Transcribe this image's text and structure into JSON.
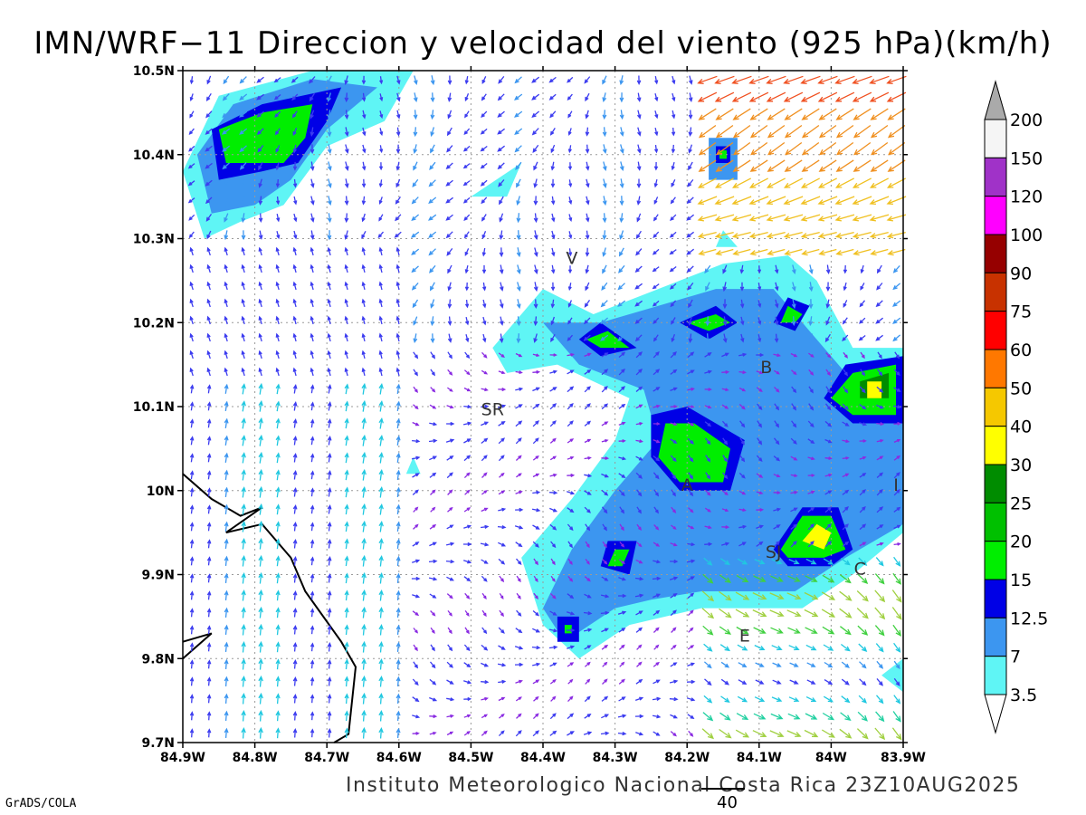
{
  "title": "IMN/WRF−11 Direccion y velocidad del viento (925 hPa)(km/h)",
  "footer": "Instituto Meteorologico Nacional Costa Rica  23Z10AUG2025",
  "credit": "GrADS/COLA",
  "reference_vector": "40",
  "axes": {
    "lon_labels": [
      "84.9W",
      "84.8W",
      "84.7W",
      "84.6W",
      "84.5W",
      "84.4W",
      "84.3W",
      "84.2W",
      "84.1W",
      "84W",
      "83.9W"
    ],
    "lat_labels": [
      "10.5N",
      "10.4N",
      "10.3N",
      "10.2N",
      "10.1N",
      "10N",
      "9.9N",
      "9.8N",
      "9.7N"
    ],
    "lon_range": [
      -84.9,
      -83.9
    ],
    "lat_range": [
      9.7,
      10.5
    ]
  },
  "colorbar": {
    "levels": [
      "3.5",
      "7",
      "12.5",
      "15",
      "20",
      "25",
      "30",
      "40",
      "50",
      "60",
      "75",
      "90",
      "100",
      "120",
      "150",
      "200"
    ],
    "colors": [
      "#5ff5f5",
      "#3c96f0",
      "#0000e6",
      "#00ee00",
      "#00c000",
      "#008c00",
      "#ffff00",
      "#f5c800",
      "#ff7800",
      "#ff0000",
      "#c83200",
      "#960000",
      "#ff00ff",
      "#a032c8",
      "#f5f5f5",
      "#aaaaaa"
    ]
  },
  "places": [
    {
      "label": "V",
      "lon": -84.36,
      "lat": 10.27
    },
    {
      "label": "SR",
      "lon": -84.47,
      "lat": 10.09
    },
    {
      "label": "B",
      "lon": -84.09,
      "lat": 10.14
    },
    {
      "label": "A",
      "lon": -84.2,
      "lat": 10.0
    },
    {
      "label": "SJ",
      "lon": -84.08,
      "lat": 9.92
    },
    {
      "label": "C",
      "lon": -83.96,
      "lat": 9.9
    },
    {
      "label": "E",
      "lon": -84.12,
      "lat": 9.82
    },
    {
      "label": "I",
      "lon": -83.91,
      "lat": 10.0
    }
  ],
  "speed_areas": [
    {
      "level": 0,
      "pts": [
        [
          -84.87,
          10.3
        ],
        [
          -84.9,
          10.38
        ],
        [
          -84.85,
          10.47
        ],
        [
          -84.72,
          10.5
        ],
        [
          -84.58,
          10.5
        ],
        [
          -84.62,
          10.44
        ],
        [
          -84.7,
          10.41
        ],
        [
          -84.76,
          10.34
        ],
        [
          -84.82,
          10.32
        ]
      ]
    },
    {
      "level": 1,
      "pts": [
        [
          -84.86,
          10.33
        ],
        [
          -84.88,
          10.4
        ],
        [
          -84.83,
          10.46
        ],
        [
          -84.72,
          10.49
        ],
        [
          -84.63,
          10.48
        ],
        [
          -84.7,
          10.43
        ],
        [
          -84.75,
          10.37
        ],
        [
          -84.8,
          10.34
        ]
      ]
    },
    {
      "level": 2,
      "pts": [
        [
          -84.85,
          10.37
        ],
        [
          -84.86,
          10.43
        ],
        [
          -84.79,
          10.46
        ],
        [
          -84.68,
          10.48
        ],
        [
          -84.7,
          10.44
        ],
        [
          -84.74,
          10.39
        ],
        [
          -84.79,
          10.38
        ]
      ]
    },
    {
      "level": 3,
      "pts": [
        [
          -84.84,
          10.39
        ],
        [
          -84.85,
          10.43
        ],
        [
          -84.79,
          10.45
        ],
        [
          -84.72,
          10.46
        ],
        [
          -84.73,
          10.42
        ],
        [
          -84.76,
          10.39
        ]
      ]
    },
    {
      "level": 0,
      "pts": [
        [
          -84.47,
          10.17
        ],
        [
          -84.4,
          10.24
        ],
        [
          -84.33,
          10.21
        ],
        [
          -84.24,
          10.24
        ],
        [
          -84.15,
          10.27
        ],
        [
          -84.06,
          10.28
        ],
        [
          -84.02,
          10.25
        ],
        [
          -83.97,
          10.17
        ],
        [
          -83.9,
          10.17
        ],
        [
          -83.9,
          9.95
        ],
        [
          -83.97,
          9.9
        ],
        [
          -84.04,
          9.86
        ],
        [
          -84.18,
          9.86
        ],
        [
          -84.28,
          9.84
        ],
        [
          -84.35,
          9.8
        ],
        [
          -84.4,
          9.84
        ],
        [
          -84.43,
          9.92
        ],
        [
          -84.36,
          9.99
        ],
        [
          -84.3,
          10.06
        ],
        [
          -84.28,
          10.11
        ],
        [
          -84.38,
          10.15
        ],
        [
          -84.45,
          10.14
        ]
      ]
    },
    {
      "level": 1,
      "pts": [
        [
          -84.4,
          10.2
        ],
        [
          -84.32,
          10.2
        ],
        [
          -84.24,
          10.22
        ],
        [
          -84.16,
          10.24
        ],
        [
          -84.08,
          10.24
        ],
        [
          -84.04,
          10.2
        ],
        [
          -83.98,
          10.14
        ],
        [
          -83.9,
          10.14
        ],
        [
          -83.9,
          9.96
        ],
        [
          -83.98,
          9.92
        ],
        [
          -84.05,
          9.88
        ],
        [
          -84.18,
          9.88
        ],
        [
          -84.25,
          9.87
        ],
        [
          -84.3,
          9.86
        ],
        [
          -84.37,
          9.82
        ],
        [
          -84.4,
          9.86
        ],
        [
          -84.36,
          9.93
        ],
        [
          -84.3,
          10.0
        ],
        [
          -84.24,
          10.06
        ],
        [
          -84.26,
          10.12
        ],
        [
          -84.35,
          10.15
        ]
      ]
    },
    {
      "level": 2,
      "pts": [
        [
          -84.25,
          10.09
        ],
        [
          -84.2,
          10.1
        ],
        [
          -84.12,
          10.06
        ],
        [
          -84.14,
          10.0
        ],
        [
          -84.21,
          10.0
        ],
        [
          -84.25,
          10.04
        ]
      ]
    },
    {
      "level": 3,
      "pts": [
        [
          -84.23,
          10.08
        ],
        [
          -84.19,
          10.08
        ],
        [
          -84.14,
          10.05
        ],
        [
          -84.15,
          10.01
        ],
        [
          -84.21,
          10.01
        ],
        [
          -84.24,
          10.04
        ]
      ]
    },
    {
      "level": 2,
      "pts": [
        [
          -83.98,
          10.15
        ],
        [
          -83.9,
          10.16
        ],
        [
          -83.9,
          10.08
        ],
        [
          -83.97,
          10.08
        ],
        [
          -84.01,
          10.11
        ]
      ]
    },
    {
      "level": 3,
      "pts": [
        [
          -83.97,
          10.14
        ],
        [
          -83.91,
          10.15
        ],
        [
          -83.91,
          10.09
        ],
        [
          -83.97,
          10.09
        ],
        [
          -84.0,
          10.11
        ]
      ]
    },
    {
      "level": 5,
      "pts": [
        [
          -83.96,
          10.13
        ],
        [
          -83.92,
          10.14
        ],
        [
          -83.92,
          10.11
        ],
        [
          -83.96,
          10.11
        ]
      ]
    },
    {
      "level": 6,
      "pts": [
        [
          -83.95,
          10.13
        ],
        [
          -83.93,
          10.13
        ],
        [
          -83.93,
          10.11
        ],
        [
          -83.95,
          10.11
        ]
      ]
    },
    {
      "level": 2,
      "pts": [
        [
          -84.08,
          9.93
        ],
        [
          -84.04,
          9.98
        ],
        [
          -83.99,
          9.98
        ],
        [
          -83.97,
          9.93
        ],
        [
          -84.0,
          9.91
        ],
        [
          -84.06,
          9.91
        ]
      ]
    },
    {
      "level": 3,
      "pts": [
        [
          -84.07,
          9.93
        ],
        [
          -84.04,
          9.97
        ],
        [
          -84.0,
          9.97
        ],
        [
          -83.98,
          9.93
        ],
        [
          -84.01,
          9.92
        ],
        [
          -84.06,
          9.92
        ]
      ]
    },
    {
      "level": 6,
      "pts": [
        [
          -84.04,
          9.94
        ],
        [
          -84.02,
          9.96
        ],
        [
          -84.0,
          9.95
        ],
        [
          -84.01,
          9.93
        ]
      ]
    },
    {
      "level": 2,
      "pts": [
        [
          -84.32,
          10.2
        ],
        [
          -84.27,
          10.17
        ],
        [
          -84.32,
          10.16
        ],
        [
          -84.35,
          10.18
        ]
      ]
    },
    {
      "level": 3,
      "pts": [
        [
          -84.31,
          10.19
        ],
        [
          -84.28,
          10.17
        ],
        [
          -84.32,
          10.17
        ],
        [
          -84.34,
          10.18
        ]
      ]
    },
    {
      "level": 2,
      "pts": [
        [
          -84.21,
          10.2
        ],
        [
          -84.16,
          10.22
        ],
        [
          -84.13,
          10.2
        ],
        [
          -84.17,
          10.18
        ]
      ]
    },
    {
      "level": 3,
      "pts": [
        [
          -84.2,
          10.2
        ],
        [
          -84.16,
          10.21
        ],
        [
          -84.14,
          10.2
        ],
        [
          -84.17,
          10.19
        ]
      ]
    },
    {
      "level": 2,
      "pts": [
        [
          -84.06,
          10.23
        ],
        [
          -84.03,
          10.22
        ],
        [
          -84.05,
          10.19
        ],
        [
          -84.08,
          10.2
        ]
      ]
    },
    {
      "level": 3,
      "pts": [
        [
          -84.06,
          10.22
        ],
        [
          -84.04,
          10.21
        ],
        [
          -84.05,
          10.2
        ],
        [
          -84.07,
          10.2
        ]
      ]
    },
    {
      "level": 2,
      "pts": [
        [
          -84.31,
          9.94
        ],
        [
          -84.27,
          9.94
        ],
        [
          -84.28,
          9.9
        ],
        [
          -84.32,
          9.91
        ]
      ]
    },
    {
      "level": 3,
      "pts": [
        [
          -84.3,
          9.93
        ],
        [
          -84.28,
          9.93
        ],
        [
          -84.29,
          9.91
        ],
        [
          -84.31,
          9.91
        ]
      ]
    },
    {
      "level": 2,
      "pts": [
        [
          -84.38,
          9.85
        ],
        [
          -84.35,
          9.85
        ],
        [
          -84.35,
          9.82
        ],
        [
          -84.38,
          9.82
        ]
      ]
    },
    {
      "level": 3,
      "pts": [
        [
          -84.37,
          9.84
        ],
        [
          -84.36,
          9.84
        ],
        [
          -84.36,
          9.83
        ],
        [
          -84.37,
          9.83
        ]
      ]
    },
    {
      "level": 1,
      "pts": [
        [
          -84.17,
          10.42
        ],
        [
          -84.13,
          10.42
        ],
        [
          -84.13,
          10.37
        ],
        [
          -84.17,
          10.37
        ]
      ]
    },
    {
      "level": 2,
      "pts": [
        [
          -84.16,
          10.41
        ],
        [
          -84.14,
          10.41
        ],
        [
          -84.14,
          10.39
        ],
        [
          -84.16,
          10.39
        ]
      ]
    },
    {
      "level": 3,
      "pts": [
        [
          -84.155,
          10.405
        ],
        [
          -84.145,
          10.405
        ],
        [
          -84.145,
          10.395
        ],
        [
          -84.155,
          10.395
        ]
      ]
    },
    {
      "level": 0,
      "pts": [
        [
          -84.5,
          10.35
        ],
        [
          -84.43,
          10.39
        ],
        [
          -84.45,
          10.35
        ]
      ]
    },
    {
      "level": 0,
      "pts": [
        [
          -84.58,
          10.04
        ],
        [
          -84.57,
          10.02
        ],
        [
          -84.59,
          10.02
        ]
      ]
    },
    {
      "level": 0,
      "pts": [
        [
          -84.15,
          10.31
        ],
        [
          -84.13,
          10.29
        ],
        [
          -84.16,
          10.29
        ]
      ]
    },
    {
      "level": 0,
      "pts": [
        [
          -83.93,
          9.78
        ],
        [
          -83.9,
          9.8
        ],
        [
          -83.9,
          9.76
        ]
      ]
    }
  ],
  "coastline": [
    [
      [
        -84.9,
        10.02
      ],
      [
        -84.86,
        9.99
      ],
      [
        -84.82,
        9.97
      ],
      [
        -84.79,
        9.98
      ],
      [
        -84.84,
        9.95
      ],
      [
        -84.79,
        9.96
      ],
      [
        -84.75,
        9.92
      ],
      [
        -84.73,
        9.88
      ],
      [
        -84.68,
        9.82
      ],
      [
        -84.66,
        9.79
      ],
      [
        -84.67,
        9.71
      ],
      [
        -84.69,
        9.7
      ]
    ],
    [
      [
        -84.9,
        9.8
      ],
      [
        -84.86,
        9.83
      ],
      [
        -84.9,
        9.82
      ]
    ]
  ],
  "wind_note": "vectors are generated procedurally along the field"
}
